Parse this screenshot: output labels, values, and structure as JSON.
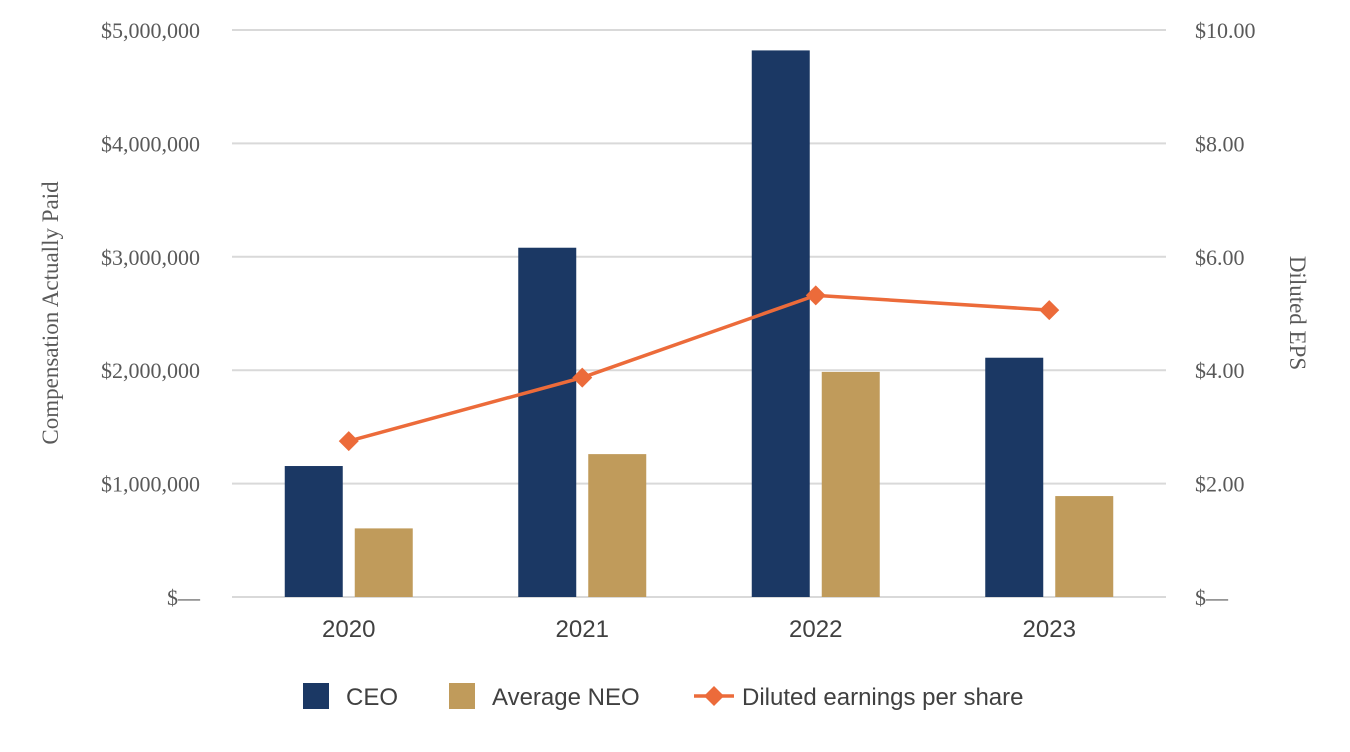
{
  "chart_data": {
    "type": "bar",
    "categories": [
      "2020",
      "2021",
      "2022",
      "2023"
    ],
    "series": [
      {
        "name": "CEO",
        "kind": "bar",
        "axis": "left",
        "color": "#1b3864",
        "values": [
          1155000,
          3080000,
          4820000,
          2110000
        ]
      },
      {
        "name": "Average NEO",
        "kind": "bar",
        "axis": "left",
        "color": "#c09b5b",
        "values": [
          605000,
          1260000,
          1985000,
          890000
        ]
      },
      {
        "name": "Diluted earnings per share",
        "kind": "line",
        "axis": "right",
        "color": "#ec6b3a",
        "values": [
          2.75,
          3.87,
          5.32,
          5.06
        ]
      }
    ],
    "ylabel": "Compensation Actually Paid",
    "y2label": "Diluted EPS",
    "ylim": [
      0,
      5000000
    ],
    "y2lim": [
      0,
      10
    ],
    "yticks": [
      0,
      1000000,
      2000000,
      3000000,
      4000000,
      5000000
    ],
    "ytick_labels": [
      "$—",
      "$1,000,000",
      "$2,000,000",
      "$3,000,000",
      "$4,000,000",
      "$5,000,000"
    ],
    "y2ticks": [
      0,
      2,
      4,
      6,
      8,
      10
    ],
    "y2tick_labels": [
      "$—",
      "$2.00",
      "$4.00",
      "$6.00",
      "$8.00",
      "$10.00"
    ],
    "grid": true,
    "legend": "bottom-center",
    "gridline_color": "#d9d9d9"
  }
}
